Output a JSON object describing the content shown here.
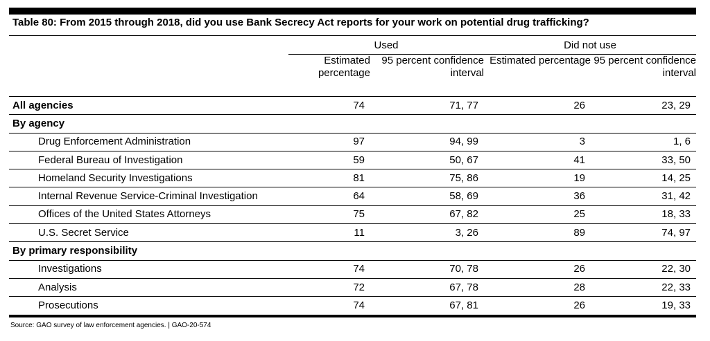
{
  "title": "Table 80: From 2015 through 2018, did you use Bank Secrecy Act reports for your work on potential drug trafficking?",
  "groups": {
    "used": "Used",
    "did_not_use": "Did not use"
  },
  "columns": {
    "used_est": "Estimated percentage",
    "used_ci": "95 percent confidence interval",
    "not_est": "Estimated percentage",
    "not_ci": "95 percent confidence interval"
  },
  "rows": [
    {
      "label": "All agencies",
      "used_est": "74",
      "used_ci": "71, 77",
      "not_est": "26",
      "not_ci": "23, 29"
    },
    {
      "label": "By agency"
    },
    {
      "label": "Drug Enforcement Administration",
      "used_est": "97",
      "used_ci": "94, 99",
      "not_est": "3",
      "not_ci": "1, 6"
    },
    {
      "label": "Federal Bureau of Investigation",
      "used_est": "59",
      "used_ci": "50, 67",
      "not_est": "41",
      "not_ci": "33, 50"
    },
    {
      "label": "Homeland Security Investigations",
      "used_est": "81",
      "used_ci": "75, 86",
      "not_est": "19",
      "not_ci": "14, 25"
    },
    {
      "label": "Internal Revenue Service-Criminal Investigation",
      "used_est": "64",
      "used_ci": "58, 69",
      "not_est": "36",
      "not_ci": "31, 42"
    },
    {
      "label": "Offices of the United States Attorneys",
      "used_est": "75",
      "used_ci": "67, 82",
      "not_est": "25",
      "not_ci": "18, 33"
    },
    {
      "label": "U.S. Secret Service",
      "used_est": "11",
      "used_ci": "3, 26",
      "not_est": "89",
      "not_ci": "74, 97"
    },
    {
      "label": "By primary responsibility"
    },
    {
      "label": "Investigations",
      "used_est": "74",
      "used_ci": "70, 78",
      "not_est": "26",
      "not_ci": "22, 30"
    },
    {
      "label": "Analysis",
      "used_est": "72",
      "used_ci": "67, 78",
      "not_est": "28",
      "not_ci": "22, 33"
    },
    {
      "label": "Prosecutions",
      "used_est": "74",
      "used_ci": "67, 81",
      "not_est": "26",
      "not_ci": "19, 33"
    }
  ],
  "source": "Source: GAO survey of law enforcement agencies. | GAO-20-574"
}
